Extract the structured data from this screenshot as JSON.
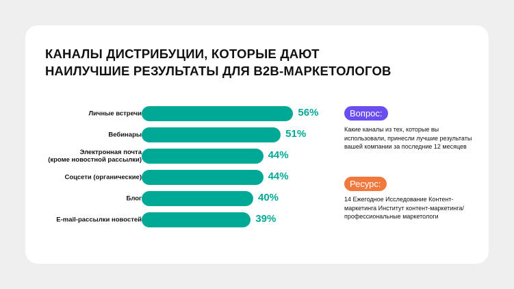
{
  "title": "КАНАЛЫ ДИСТРИБУЦИИ, КОТОРЫЕ ДАЮТ НАИЛУЧШИЕ РЕЗУЛЬТАТЫ ДЛЯ B2B-МАРКЕТОЛОГОВ",
  "chart_data": {
    "type": "bar",
    "orientation": "horizontal",
    "title": "КАНАЛЫ ДИСТРИБУЦИИ, КОТОРЫЕ ДАЮТ НАИЛУЧШИЕ РЕЗУЛЬТАТЫ ДЛЯ B2B-МАРКЕТОЛОГОВ",
    "categories": [
      "Личные встречи",
      "Вебинары",
      "Электронная почта\n(кроме новостной рассылки)",
      "Соцсети (органические)",
      "Блог",
      "E-mail-рассылки новостей"
    ],
    "values": [
      56,
      51,
      44,
      44,
      40,
      39
    ],
    "value_labels": [
      "56%",
      "51%",
      "44%",
      "44%",
      "40%",
      "39%"
    ],
    "unit": "%",
    "bar_color": "#00a896",
    "grid": false
  },
  "question": {
    "label": "Вопрос:",
    "text": "Какие каналы из тех, которые вы использовали, принесли лучшие результаты вашей компании за последние 12 месяцев",
    "color": "#6b4ef0"
  },
  "source": {
    "label": "Ресурс:",
    "text": "14 Ежегодное Исследование Контент-маркетинга Институт контент-маркетинга/ профессиональные маркетологи",
    "color": "#f07a3e"
  }
}
